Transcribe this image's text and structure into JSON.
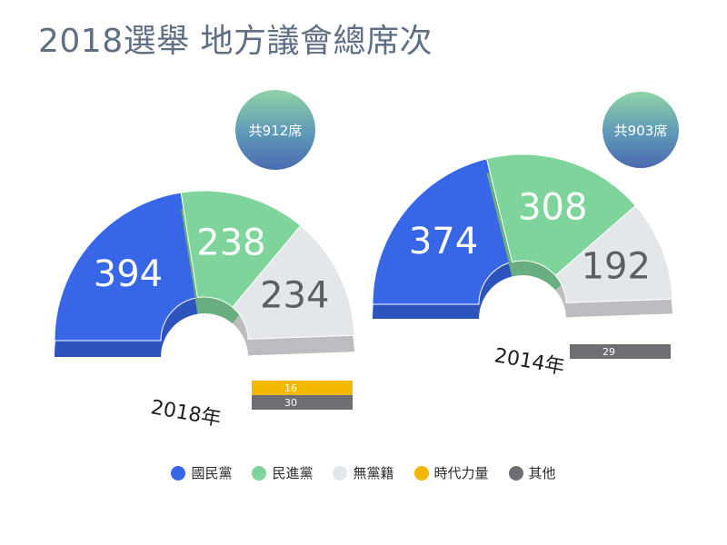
{
  "title": "2018選舉 地方議會總席次",
  "colors": {
    "kmt": "#3767e6",
    "dpp": "#7fd49b",
    "ind": "#e4e7ea",
    "npp": "#f4b800",
    "other": "#6c6e72"
  },
  "chart_data": [
    {
      "type": "pie",
      "year_label": "2018年",
      "total_label": "共912席",
      "slices": [
        {
          "key": "kmt",
          "value": 394
        },
        {
          "key": "dpp",
          "value": 238
        },
        {
          "key": "ind",
          "value": 234
        },
        {
          "key": "npp",
          "value": 16
        },
        {
          "key": "other",
          "value": 30
        }
      ]
    },
    {
      "type": "pie",
      "year_label": "2014年",
      "total_label": "共903席",
      "slices": [
        {
          "key": "kmt",
          "value": 374
        },
        {
          "key": "dpp",
          "value": 308
        },
        {
          "key": "ind",
          "value": 192
        },
        {
          "key": "other",
          "value": 29
        }
      ]
    }
  ],
  "legend": [
    {
      "key": "kmt",
      "label": "國民黨"
    },
    {
      "key": "dpp",
      "label": "民進黨"
    },
    {
      "key": "ind",
      "label": "無黨籍"
    },
    {
      "key": "npp",
      "label": "時代力量"
    },
    {
      "key": "other",
      "label": "其他"
    }
  ]
}
